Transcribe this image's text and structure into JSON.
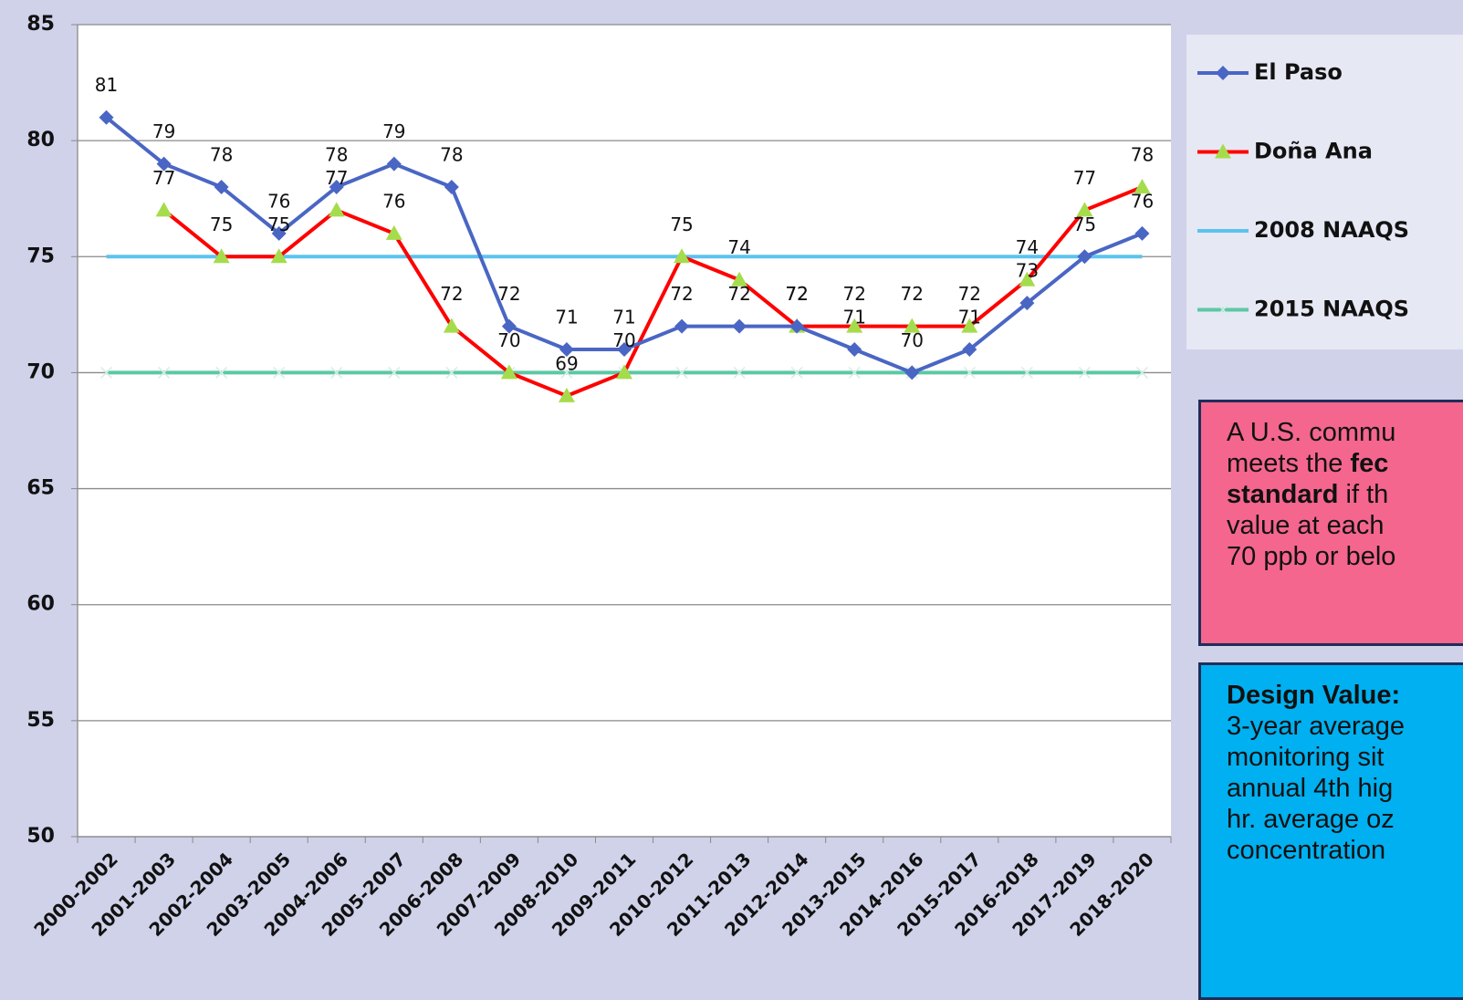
{
  "chart_data": {
    "type": "line",
    "categories": [
      "2000-2002",
      "2001-2003",
      "2002-2004",
      "2003-2005",
      "2004-2006",
      "2005-2007",
      "2006-2008",
      "2007-2009",
      "2008-2010",
      "2009-2011",
      "2010-2012",
      "2011-2013",
      "2012-2014",
      "2013-2015",
      "2014-2016",
      "2015-2017",
      "2016-2018",
      "2017-2019",
      "2018-2020"
    ],
    "series": [
      {
        "name": "El Paso",
        "color": "#4a66c4",
        "marker": "diamond",
        "marker_color": "#4a66c4",
        "data_labels": true,
        "values": [
          81,
          79,
          78,
          76,
          78,
          79,
          78,
          72,
          71,
          71,
          72,
          72,
          72,
          71,
          70,
          71,
          73,
          75,
          76
        ]
      },
      {
        "name": "Doña Ana",
        "color": "#ff0000",
        "marker": "triangle",
        "marker_color": "#a5dc4c",
        "data_labels": true,
        "values": [
          null,
          77,
          75,
          75,
          77,
          76,
          72,
          70,
          69,
          70,
          75,
          74,
          72,
          72,
          72,
          72,
          74,
          77,
          78
        ]
      },
      {
        "name": "2008 NAAQS",
        "color": "#5bc3ee",
        "marker": "none",
        "marker_color": "#5bc3ee",
        "data_labels": false,
        "values": [
          75,
          75,
          75,
          75,
          75,
          75,
          75,
          75,
          75,
          75,
          75,
          75,
          75,
          75,
          75,
          75,
          75,
          75,
          75
        ]
      },
      {
        "name": "2015 NAAQS",
        "color": "#5cc8a4",
        "marker": "x",
        "marker_color": "#d6eee4",
        "data_labels": false,
        "values": [
          70,
          70,
          70,
          70,
          70,
          70,
          70,
          70,
          70,
          70,
          70,
          70,
          70,
          70,
          70,
          70,
          70,
          70,
          70
        ]
      }
    ],
    "ylim": [
      50,
      85
    ],
    "yticks": [
      50,
      55,
      60,
      65,
      70,
      75,
      80,
      85
    ],
    "grid": true,
    "legend": "right"
  },
  "notes": [
    {
      "lines": [
        [
          {
            "text": "A U.S. commu",
            "bold": false
          }
        ],
        [
          {
            "text": "meets the ",
            "bold": false
          },
          {
            "text": "fec",
            "bold": true
          }
        ],
        [
          {
            "text": "standard",
            "bold": true
          },
          {
            "text": " if th",
            "bold": false
          }
        ],
        [
          {
            "text": "value at each",
            "bold": false
          }
        ],
        [
          {
            "text": "70 ppb or belo",
            "bold": false
          }
        ]
      ]
    },
    {
      "lines": [
        [
          {
            "text": "Design Value:",
            "bold": true
          }
        ],
        [
          {
            "text": "3-year average",
            "bold": false
          }
        ],
        [
          {
            "text": "monitoring sit",
            "bold": false
          }
        ],
        [
          {
            "text": "annual 4th hig",
            "bold": false
          }
        ],
        [
          {
            "text": "hr. average oz",
            "bold": false
          }
        ],
        [
          {
            "text": "concentration",
            "bold": false
          }
        ]
      ]
    }
  ]
}
